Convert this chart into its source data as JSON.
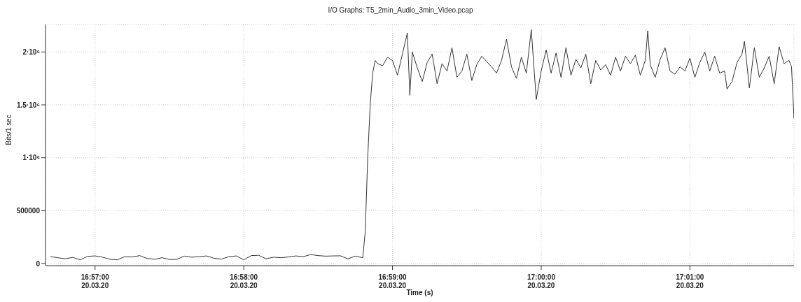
{
  "chart_data": {
    "type": "line",
    "title": "I/O Graphs: T5_2min_Audio_3min_Video.pcap",
    "xlabel": "Time (s)",
    "ylabel": "Bits/1 sec",
    "x": [
      "--03-20T16:56:42",
      "--03-20T16:56:45",
      "--03-20T16:56:48",
      "--03-20T16:56:51",
      "--03-20T16:56:54",
      "--03-20T16:56:57",
      "--03-20T16:57:00",
      "--03-20T16:57:03",
      "--03-20T16:57:06",
      "--03-20T16:57:09",
      "--03-20T16:57:12",
      "--03-20T16:57:15",
      "--03-20T16:57:18",
      "--03-20T16:57:21",
      "--03-20T16:57:24",
      "--03-20T16:57:27",
      "--03-20T16:57:30",
      "--03-20T16:57:33",
      "--03-20T16:57:36",
      "--03-20T16:57:39",
      "--03-20T16:57:42",
      "--03-20T16:57:45",
      "--03-20T16:57:48",
      "--03-20T16:57:51",
      "--03-20T16:57:54",
      "--03-20T16:57:57",
      "--03-20T16:58:00",
      "--03-20T16:58:03",
      "--03-20T16:58:06",
      "--03-20T16:58:09",
      "--03-20T16:58:12",
      "--03-20T16:58:15",
      "--03-20T16:58:18",
      "--03-20T16:58:21",
      "--03-20T16:58:24",
      "--03-20T16:58:27",
      "--03-20T16:58:30",
      "--03-20T16:58:33",
      "--03-20T16:58:36",
      "--03-20T16:58:39",
      "--03-20T16:58:42",
      "--03-20T16:58:45",
      "--03-20T16:58:48",
      "--03-20T16:58:49",
      "--03-20T16:58:50",
      "--03-20T16:58:51",
      "--03-20T16:58:52",
      "--03-20T16:58:53",
      "--03-20T16:58:54",
      "--03-20T16:58:56",
      "--03-20T16:58:58",
      "--03-20T16:59:00",
      "--03-20T16:59:02",
      "--03-20T16:59:04",
      "--03-20T16:59:06",
      "--03-20T16:59:07",
      "--03-20T16:59:08",
      "--03-20T16:59:10",
      "--03-20T16:59:12",
      "--03-20T16:59:14",
      "--03-20T16:59:16",
      "--03-20T16:59:18",
      "--03-20T16:59:20",
      "--03-20T16:59:22",
      "--03-20T16:59:24",
      "--03-20T16:59:26",
      "--03-20T16:59:28",
      "--03-20T16:59:30",
      "--03-20T16:59:32",
      "--03-20T16:59:34",
      "--03-20T16:59:36",
      "--03-20T16:59:38",
      "--03-20T16:59:40",
      "--03-20T16:59:42",
      "--03-20T16:59:44",
      "--03-20T16:59:46",
      "--03-20T16:59:48",
      "--03-20T16:59:50",
      "--03-20T16:59:52",
      "--03-20T16:59:54",
      "--03-20T16:59:56",
      "--03-20T16:59:58",
      "--03-20T17:00:00",
      "--03-20T17:00:02",
      "--03-20T17:00:04",
      "--03-20T17:00:06",
      "--03-20T17:00:08",
      "--03-20T17:00:10",
      "--03-20T17:00:12",
      "--03-20T17:00:14",
      "--03-20T17:00:16",
      "--03-20T17:00:18",
      "--03-20T17:00:20",
      "--03-20T17:00:22",
      "--03-20T17:00:24",
      "--03-20T17:00:26",
      "--03-20T17:00:28",
      "--03-20T17:00:30",
      "--03-20T17:00:32",
      "--03-20T17:00:34",
      "--03-20T17:00:36",
      "--03-20T17:00:38",
      "--03-20T17:00:40",
      "--03-20T17:00:42",
      "--03-20T17:00:43",
      "--03-20T17:00:44",
      "--03-20T17:00:46",
      "--03-20T17:00:48",
      "--03-20T17:00:50",
      "--03-20T17:00:52",
      "--03-20T17:00:54",
      "--03-20T17:00:56",
      "--03-20T17:00:58",
      "--03-20T17:01:00",
      "--03-20T17:01:02",
      "--03-20T17:01:04",
      "--03-20T17:01:06",
      "--03-20T17:01:08",
      "--03-20T17:01:10",
      "--03-20T17:01:12",
      "--03-20T17:01:14",
      "--03-20T17:01:15",
      "--03-20T17:01:17",
      "--03-20T17:01:19",
      "--03-20T17:01:21",
      "--03-20T17:01:22",
      "--03-20T17:01:24",
      "--03-20T17:01:26",
      "--03-20T17:01:28",
      "--03-20T17:01:30",
      "--03-20T17:01:32",
      "--03-20T17:01:34",
      "--03-20T17:01:36",
      "--03-20T17:01:38",
      "--03-20T17:01:40",
      "--03-20T17:01:41",
      "--03-20T17:01:42"
    ],
    "series": [
      {
        "color": "#333333",
        "values": [
          65000,
          55000,
          45000,
          58000,
          35000,
          68000,
          72000,
          60000,
          40000,
          35000,
          65000,
          62000,
          75000,
          48000,
          40000,
          55000,
          38000,
          40000,
          70000,
          60000,
          65000,
          72000,
          50000,
          42000,
          65000,
          72000,
          35000,
          75000,
          78000,
          45000,
          60000,
          55000,
          62000,
          72000,
          65000,
          85000,
          75000,
          70000,
          72000,
          73000,
          45000,
          70000,
          55000,
          300000,
          1000000,
          1500000,
          1800000,
          1920000,
          1890000,
          1870000,
          1950000,
          1920000,
          1780000,
          1980000,
          2180000,
          1590000,
          2000000,
          1850000,
          1720000,
          1900000,
          1980000,
          1700000,
          1890000,
          1820000,
          2040000,
          1760000,
          1820000,
          1980000,
          1730000,
          1880000,
          1960000,
          1910000,
          1860000,
          1800000,
          1920000,
          2120000,
          1860000,
          1750000,
          1950000,
          1800000,
          2210000,
          1550000,
          1820000,
          2020000,
          1800000,
          1990000,
          1760000,
          2040000,
          1780000,
          1930000,
          1850000,
          1980000,
          1700000,
          1920000,
          1830000,
          1880000,
          1780000,
          1950000,
          1820000,
          1960000,
          1890000,
          1970000,
          1780000,
          1920000,
          2200000,
          1880000,
          1760000,
          1930000,
          2040000,
          1820000,
          1790000,
          1860000,
          1820000,
          1940000,
          1760000,
          1900000,
          2000000,
          1820000,
          1960000,
          1800000,
          1820000,
          1650000,
          1720000,
          1900000,
          1980000,
          2100000,
          1660000,
          2040000,
          1760000,
          1850000,
          1960000,
          1700000,
          2050000,
          1890000,
          1920000,
          1860000,
          1370000
        ]
      }
    ],
    "xlim": [
      "--03-20T16:56:40",
      "--03-20T17:01:42"
    ],
    "xticks": [
      {
        "value": "--03-20T16:57:00",
        "label": "16:57:00\n20.03.20"
      },
      {
        "value": "--03-20T16:58:00",
        "label": "16:58:00\n20.03.20"
      },
      {
        "value": "--03-20T16:59:00",
        "label": "16:59:00\n20.03.20"
      },
      {
        "value": "--03-20T17:00:00",
        "label": "17:00:00\n20.03.20"
      },
      {
        "value": "--03-20T17:01:00",
        "label": "17:01:00\n20.03.20"
      }
    ],
    "ylim": [
      -20000,
      2260000
    ],
    "yticks": [
      0,
      500000,
      {
        "value": 1000000,
        "label": "1·10⁶"
      },
      {
        "value": 1500000,
        "label": "1.5·10⁶"
      },
      {
        "value": 2000000,
        "label": "2·10⁶"
      }
    ],
    "grid": true,
    "marker": "none",
    "line_style": "solid",
    "legend": false
  }
}
